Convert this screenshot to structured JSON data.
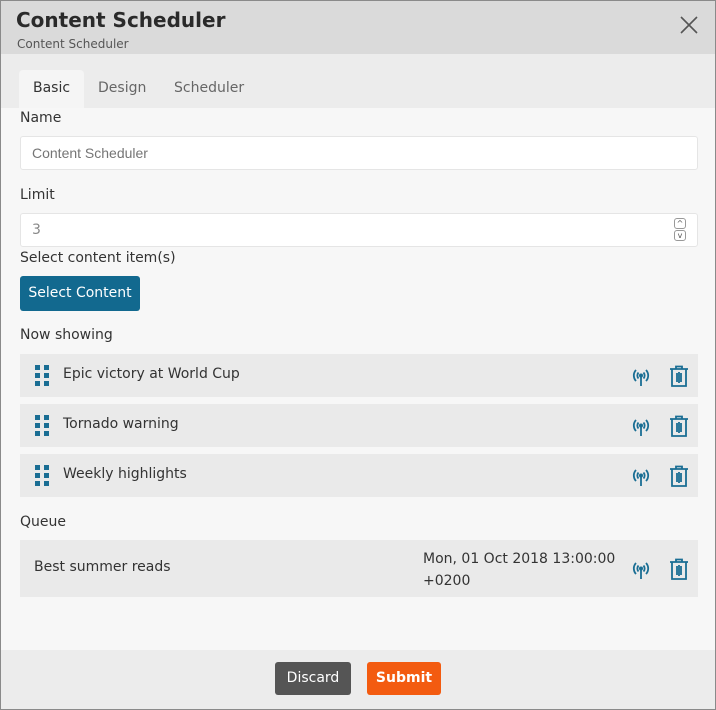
{
  "dialog": {
    "title": "Content Scheduler",
    "subtitle": "Content Scheduler"
  },
  "tabs": [
    {
      "label": "Basic",
      "active": true
    },
    {
      "label": "Design"
    },
    {
      "label": "Scheduler"
    }
  ],
  "form": {
    "name_label": "Name",
    "name_placeholder": "Content Scheduler",
    "limit_label": "Limit",
    "limit_value": "3",
    "select_label": "Select content item(s)",
    "select_button": "Select Content",
    "now_showing_label": "Now showing",
    "now_showing": [
      {
        "title": "Epic victory at World Cup"
      },
      {
        "title": "Tornado warning"
      },
      {
        "title": "Weekly highlights"
      }
    ],
    "queue_label": "Queue",
    "queue": [
      {
        "title": "Best summer reads",
        "date": "Mon, 01 Oct 2018 13:00:00",
        "tz": "+0200"
      }
    ]
  },
  "footer": {
    "discard": "Discard",
    "submit": "Submit"
  },
  "colors": {
    "accent": "#12698f",
    "submit": "#f35b10",
    "discard": "#555555"
  }
}
